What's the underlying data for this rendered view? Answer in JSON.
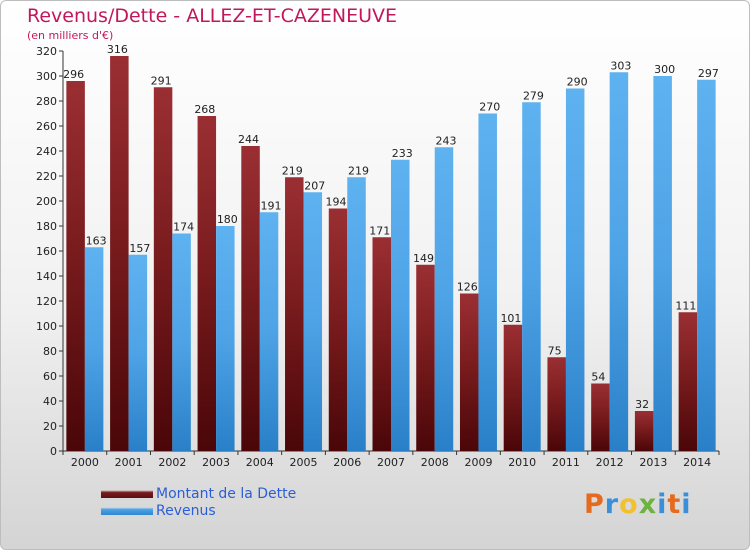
{
  "chart_data": {
    "type": "bar",
    "title": "Revenus/Dette - ALLEZ-ET-CAZENEUVE",
    "ylabel": "(en milliers d'€)",
    "xlabel": "",
    "categories": [
      "2000",
      "2001",
      "2002",
      "2003",
      "2004",
      "2005",
      "2006",
      "2007",
      "2008",
      "2009",
      "2010",
      "2011",
      "2012",
      "2013",
      "2014"
    ],
    "series": [
      {
        "name": "Montant de la Dette",
        "color": "#7a1c1e",
        "values": [
          296,
          316,
          291,
          268,
          244,
          219,
          194,
          171,
          149,
          126,
          101,
          75,
          54,
          32,
          111
        ]
      },
      {
        "name": "Revenus",
        "color": "#4ea3e6",
        "values": [
          163,
          157,
          174,
          180,
          191,
          207,
          219,
          233,
          243,
          270,
          279,
          290,
          303,
          300,
          297
        ]
      }
    ],
    "ylim": [
      0,
      320
    ],
    "yticks": [
      0,
      20,
      40,
      60,
      80,
      100,
      120,
      140,
      160,
      180,
      200,
      220,
      240,
      260,
      280,
      300,
      320
    ],
    "grid": false,
    "legend": "bottom-left"
  },
  "logo": {
    "text": "Proxiti",
    "letter_colors": [
      "#e66a1e",
      "#3a8fd8",
      "#f2c12e",
      "#6db33f",
      "#3a8fd8",
      "#e66a1e",
      "#3a8fd8"
    ]
  },
  "colors": {
    "title": "#c2185b",
    "legend_text": "#2b5ed6",
    "axis": "#333333"
  }
}
